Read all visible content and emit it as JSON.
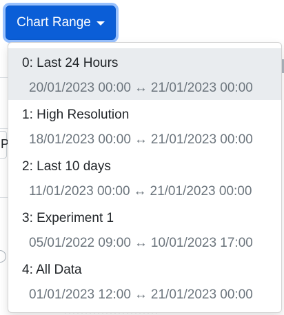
{
  "toggle": {
    "label": "Chart Range"
  },
  "background": {
    "partial_text": "P"
  },
  "menu": {
    "items": [
      {
        "title": "0: Last 24 Hours",
        "start": "20/01/2023 00:00",
        "arrow": "↔",
        "end": "21/01/2023 00:00",
        "active": true
      },
      {
        "title": "1: High Resolution",
        "start": "18/01/2023 00:00",
        "arrow": "↔",
        "end": "21/01/2023 00:00",
        "active": false
      },
      {
        "title": "2: Last 10 days",
        "start": "11/01/2023 00:00",
        "arrow": "↔",
        "end": "21/01/2023 00:00",
        "active": false
      },
      {
        "title": "3: Experiment 1",
        "start": "05/01/2022 09:00",
        "arrow": "↔",
        "end": "10/01/2023 17:00",
        "active": false
      },
      {
        "title": "4: All Data",
        "start": "01/01/2023 12:00",
        "arrow": "↔",
        "end": "21/01/2023 00:00",
        "active": false
      }
    ]
  },
  "colors": {
    "primary": "#0b5ed7",
    "active_item_bg": "#e9ecef",
    "muted_text": "#6c757d",
    "body_text": "#212529"
  },
  "icons": {
    "toggle_caret": "caret-down-icon",
    "range_separator": "left-right-arrow-icon"
  }
}
